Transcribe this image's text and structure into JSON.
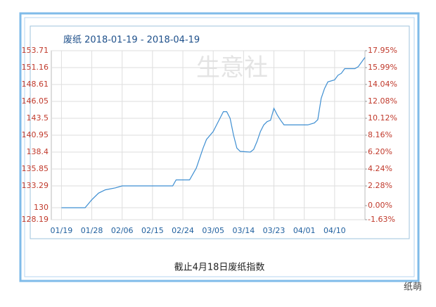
{
  "chart_data": {
    "type": "line",
    "title": "废纸 2018-01-19 - 2018-04-19",
    "caption": "截止4月18日废纸指数",
    "watermark": "生意社",
    "footer_right": "纸萌",
    "x": [
      "01/19",
      "01/26",
      "01/28",
      "01/30",
      "02/01",
      "02/04",
      "02/06",
      "02/21",
      "02/22",
      "02/26",
      "02/28",
      "03/01",
      "03/02",
      "03/03",
      "03/05",
      "03/06",
      "03/07",
      "03/08",
      "03/09",
      "03/10",
      "03/11",
      "03/12",
      "03/13",
      "03/16",
      "03/17",
      "03/18",
      "03/19",
      "03/20",
      "03/21",
      "03/22",
      "03/23",
      "03/24",
      "03/25",
      "03/26",
      "04/02",
      "04/04",
      "04/05",
      "04/06",
      "04/07",
      "04/08",
      "04/10",
      "04/11",
      "04/12",
      "04/13",
      "04/16",
      "04/17",
      "04/18",
      "04/19"
    ],
    "series": [
      {
        "name": "废纸",
        "color": "#3f8fd2",
        "values": [
          130,
          130,
          131.2,
          132.2,
          132.7,
          133,
          133.29,
          133.29,
          134.2,
          134.2,
          136,
          137.5,
          139,
          140.3,
          141.5,
          142.5,
          143.5,
          144.5,
          144.5,
          143.5,
          141,
          139,
          138.5,
          138.4,
          138.8,
          140,
          141.5,
          142.5,
          143,
          143.2,
          145,
          144,
          143.2,
          142.5,
          142.5,
          142.8,
          143.3,
          146.5,
          148,
          149,
          149.3,
          150,
          150.3,
          151,
          151,
          151.3,
          152,
          152.7
        ]
      }
    ],
    "xlim": [
      "01/16",
      "04/19"
    ],
    "xticks": [
      "01/19",
      "01/28",
      "02/06",
      "02/15",
      "02/24",
      "03/05",
      "03/14",
      "03/23",
      "04/01",
      "04/10"
    ],
    "ylim": [
      128.19,
      153.71
    ],
    "yticks": [
      128.19,
      130,
      133.29,
      135.85,
      138.4,
      140.95,
      143.5,
      146.05,
      148.61,
      151.16,
      153.71
    ],
    "y2lim": [
      -1.63,
      17.95
    ],
    "y2ticks": [
      {
        "value": -1.63,
        "label": "-1.63%"
      },
      {
        "value": 0,
        "label": "0.00%"
      },
      {
        "value": 2.28,
        "label": "2.28%"
      },
      {
        "value": 4.24,
        "label": "4.24%"
      },
      {
        "value": 6.2,
        "label": "6.20%"
      },
      {
        "value": 8.16,
        "label": "8.16%"
      },
      {
        "value": 10.12,
        "label": "10.12%"
      },
      {
        "value": 12.08,
        "label": "12.08%"
      },
      {
        "value": 14.04,
        "label": "14.04%"
      },
      {
        "value": 15.99,
        "label": "15.99%"
      },
      {
        "value": 17.95,
        "label": "17.95%"
      }
    ],
    "grid": true
  }
}
